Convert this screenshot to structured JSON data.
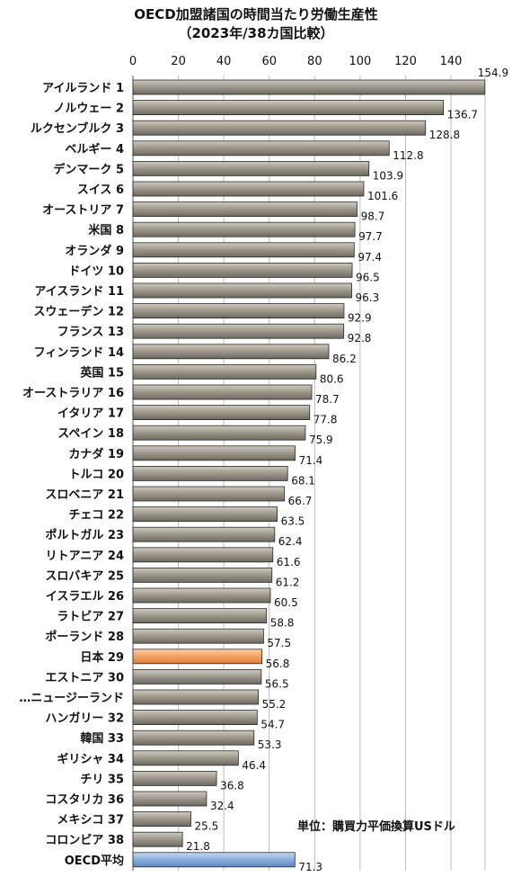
{
  "chart_data": {
    "type": "bar",
    "orientation": "horizontal",
    "title": "OECD加盟諸国の時間当たり労働生産性",
    "subtitle": "（2023年/38カ国比較）",
    "unit_note": "単位：購買力平価換算USドル",
    "xlim": [
      0,
      155
    ],
    "xticks": [
      0,
      20,
      40,
      60,
      80,
      100,
      120,
      140
    ],
    "grid": true,
    "colors": {
      "bar": "#a19b8f",
      "bar_edge": "#2a2a2a",
      "highlight_japan": "#f5a468",
      "oecd_average": "#8fb2de"
    },
    "categories": [
      "アイルランド 1",
      "ノルウェー 2",
      "ルクセンブルク 3",
      "ベルギー 4",
      "デンマーク 5",
      "スイス 6",
      "オーストリア 7",
      "米国 8",
      "オランダ 9",
      "ドイツ 10",
      "アイスランド 11",
      "スウェーデン 12",
      "フランス 13",
      "フィンランド 14",
      "英国 15",
      "オーストラリア 16",
      "イタリア 17",
      "スペイン 18",
      "カナダ 19",
      "トルコ 20",
      "スロベニア 21",
      "チェコ 22",
      "ポルトガル 23",
      "リトアニア 24",
      "スロバキア 25",
      "イスラエル 26",
      "ラトビア 27",
      "ポーランド 28",
      "日本 29",
      "エストニア 30",
      "…ニュージーランド",
      "ハンガリー 32",
      "韓国 33",
      "ギリシャ 34",
      "チリ 35",
      "コスタリカ 36",
      "メキシコ 37",
      "コロンビア 38",
      "OECD平均"
    ],
    "values": [
      154.9,
      136.7,
      128.8,
      112.8,
      103.9,
      101.6,
      98.7,
      97.7,
      97.4,
      96.5,
      96.3,
      92.9,
      92.8,
      86.2,
      80.6,
      78.7,
      77.8,
      75.9,
      71.4,
      68.1,
      66.7,
      63.5,
      62.4,
      61.6,
      61.2,
      60.5,
      58.8,
      57.5,
      56.8,
      56.5,
      55.2,
      54.7,
      53.3,
      46.4,
      36.8,
      32.4,
      25.5,
      21.8,
      71.3
    ],
    "value_labels": [
      "154.9",
      "136.7",
      "128.8",
      "112.8",
      "103.9",
      "101.6",
      "98.7",
      "97.7",
      "97.4",
      "96.5",
      "96.3",
      "92.9",
      "92.8",
      "86.2",
      "80.6",
      "78.7",
      "77.8",
      "75.9",
      "71.4",
      "68.1",
      "66.7",
      "63.5",
      "62.4",
      "61.6",
      "61.2",
      "60.5",
      "58.8",
      "57.5",
      "56.8",
      "56.5",
      "55.2",
      "54.7",
      "53.3",
      "46.4",
      "36.8",
      "32.4",
      "25.5",
      "21.8",
      "71.3"
    ],
    "highlight": {
      "日本 29": "highlight_japan",
      "OECD平均": "oecd_average"
    }
  }
}
